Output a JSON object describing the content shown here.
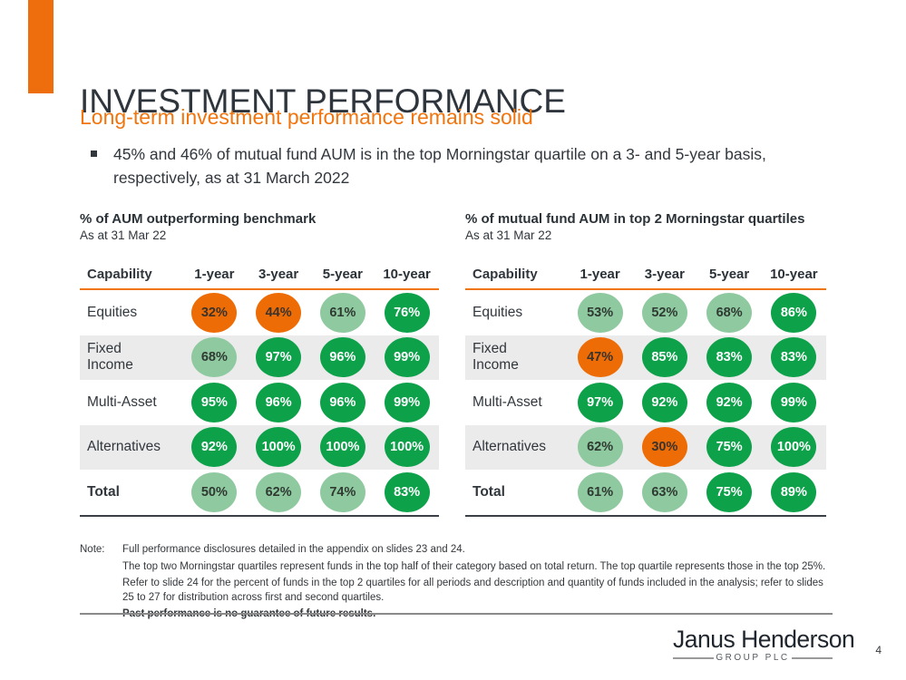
{
  "slide": {
    "title": "INVESTMENT PERFORMANCE",
    "subtitle": "Long-term investment performance remains solid",
    "bullet": "45% and 46% of mutual fund AUM is in the top Morningstar quartile on a 3- and 5-year basis, respectively, as at 31 March 2022",
    "page_number": "4"
  },
  "colors": {
    "brand_orange": "#ED6C05",
    "dark_green": "#0DA14A",
    "light_green": "#8FC9A0",
    "row_stripe_gray": "#EBEBEB",
    "text_dark": "#31373D"
  },
  "tables": [
    {
      "title": "% of AUM outperforming benchmark",
      "as_at": "As at 31 Mar 22",
      "columns": [
        "Capability",
        "1-year",
        "3-year",
        "5-year",
        "10-year"
      ],
      "rows": [
        {
          "label": "Equities",
          "values": [
            "32%",
            "44%",
            "61%",
            "76%"
          ],
          "levels": [
            "orange",
            "orange",
            "light",
            "dark"
          ]
        },
        {
          "label": "Fixed\nIncome",
          "values": [
            "68%",
            "97%",
            "96%",
            "99%"
          ],
          "levels": [
            "light",
            "dark",
            "dark",
            "dark"
          ]
        },
        {
          "label": "Multi-Asset",
          "values": [
            "95%",
            "96%",
            "96%",
            "99%"
          ],
          "levels": [
            "dark",
            "dark",
            "dark",
            "dark"
          ]
        },
        {
          "label": "Alternatives",
          "values": [
            "92%",
            "100%",
            "100%",
            "100%"
          ],
          "levels": [
            "dark",
            "dark",
            "dark",
            "dark"
          ]
        },
        {
          "label": "Total",
          "values": [
            "50%",
            "62%",
            "74%",
            "83%"
          ],
          "levels": [
            "light",
            "light",
            "light",
            "dark"
          ]
        }
      ]
    },
    {
      "title": "% of mutual fund AUM in top 2 Morningstar quartiles",
      "as_at": "As at 31 Mar 22",
      "columns": [
        "Capability",
        "1-year",
        "3-year",
        "5-year",
        "10-year"
      ],
      "rows": [
        {
          "label": "Equities",
          "values": [
            "53%",
            "52%",
            "68%",
            "86%"
          ],
          "levels": [
            "light",
            "light",
            "light",
            "dark"
          ]
        },
        {
          "label": "Fixed\nIncome",
          "values": [
            "47%",
            "85%",
            "83%",
            "83%"
          ],
          "levels": [
            "orange",
            "dark",
            "dark",
            "dark"
          ]
        },
        {
          "label": "Multi-Asset",
          "values": [
            "97%",
            "92%",
            "92%",
            "99%"
          ],
          "levels": [
            "dark",
            "dark",
            "dark",
            "dark"
          ]
        },
        {
          "label": "Alternatives",
          "values": [
            "62%",
            "30%",
            "75%",
            "100%"
          ],
          "levels": [
            "light",
            "orange",
            "dark",
            "dark"
          ]
        },
        {
          "label": "Total",
          "values": [
            "61%",
            "63%",
            "75%",
            "89%"
          ],
          "levels": [
            "light",
            "light",
            "dark",
            "dark"
          ]
        }
      ]
    }
  ],
  "note": {
    "label": "Note:",
    "lines": [
      "Full performance disclosures detailed in the appendix on slides 23 and 24.",
      "The top two Morningstar quartiles represent funds in the top half of their category based on total return. The top quartile represents those in the top 25%.",
      "Refer to slide 24 for the percent of funds in the top 2 quartiles for all periods and description and quantity of funds included in the analysis; refer to slides 25 to 27 for distribution across first and second quartiles.",
      "Past performance is no guarantee of future results."
    ]
  },
  "footer": {
    "logo_wordmark": "Janus Henderson",
    "logo_subtext": "GROUP PLC"
  }
}
